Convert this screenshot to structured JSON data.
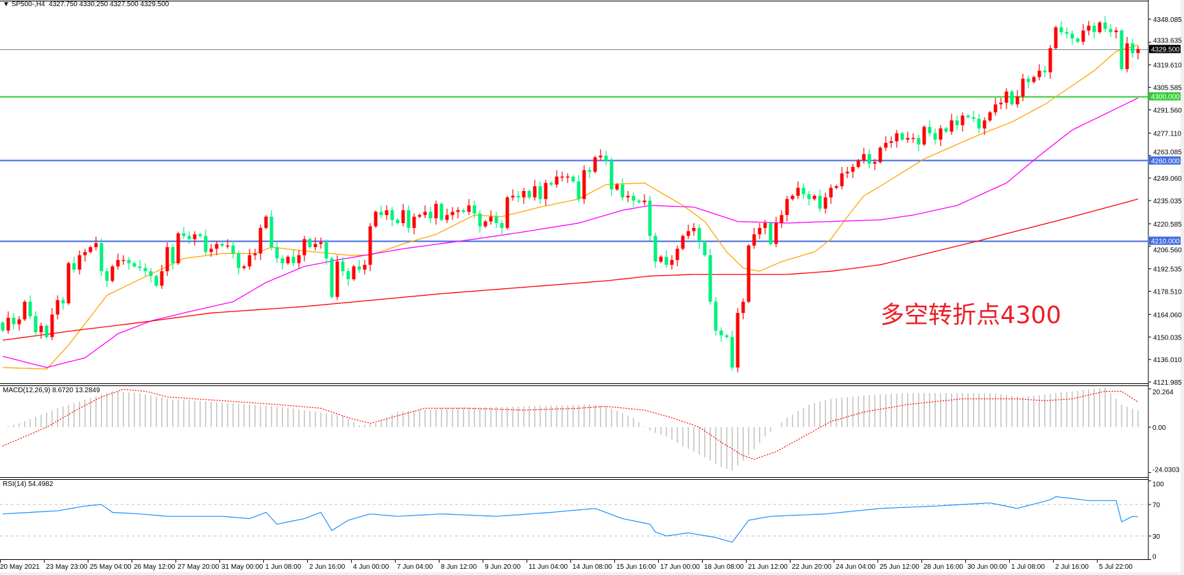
{
  "header": {
    "arrow": "▼",
    "symbol": "SP500-,H4",
    "ohlc": "4327.750 4330.250 4327.500 4329.500"
  },
  "annotation": "多空转折点4300",
  "colors": {
    "up_candle": "#ff0000",
    "down_candle": "#00f07c",
    "ma_fast": "#ffa500",
    "ma_mid": "#ff00ff",
    "ma_slow": "#ff0000",
    "level_4300": "#32cd32",
    "level_blue": "#4169e1",
    "current_price": "#778899",
    "macd_hist": "#c0c0c0",
    "macd_signal": "#ff0000",
    "rsi": "#1e90ff"
  },
  "chart_data": {
    "type": "candlestick",
    "note": "red candles rise, green candles fall",
    "price_axis": {
      "ticks": [
        "4348.085",
        "4333.635",
        "4319.610",
        "4305.585",
        "4291.560",
        "4277.110",
        "4263.085",
        "4249.060",
        "4235.035",
        "4220.585",
        "4206.560",
        "4192.535",
        "4178.510",
        "4164.060",
        "4150.035",
        "4136.010",
        "4121.985"
      ],
      "range": [
        4121.985,
        4348.085
      ]
    },
    "levels": [
      {
        "label": "4329.500",
        "value": 4329.5,
        "kind": "current"
      },
      {
        "label": "4300.000",
        "value": 4300,
        "kind": "green"
      },
      {
        "label": "4260.000",
        "value": 4260,
        "kind": "blue"
      },
      {
        "label": "4210.000",
        "value": 4210,
        "kind": "blue"
      }
    ],
    "time_labels": [
      "20 May 2021",
      "23 May 23:00",
      "25 May 04:00",
      "26 May 12:00",
      "27 May 20:00",
      "31 May 00:00",
      "1 Jun 08:00",
      "2 Jun 16:00",
      "4 Jun 00:00",
      "7 Jun 04:00",
      "8 Jun 12:00",
      "9 Jun 20:00",
      "11 Jun 04:00",
      "14 Jun 08:00",
      "15 Jun 16:00",
      "17 Jun 00:00",
      "18 Jun 08:00",
      "21 Jun 12:00",
      "22 Jun 20:00",
      "24 Jun 04:00",
      "25 Jun 12:00",
      "28 Jun 16:00",
      "30 Jun 00:00",
      "1 Jul 08:00",
      "2 Jul 16:00",
      "5 Jul 22:00"
    ],
    "first_open": 4159,
    "close": [
      4154,
      4162,
      4158,
      4161,
      4172,
      4163,
      4153,
      4157,
      4150,
      4164,
      4173,
      4171,
      4196,
      4192,
      4201,
      4203,
      4206,
      4208.5,
      4191,
      4185,
      4194,
      4198,
      4198,
      4196,
      4194,
      4193,
      4191,
      4188,
      4182,
      4191,
      4206,
      4196,
      4214.6,
      4213,
      4211,
      4214,
      4213,
      4203,
      4205,
      4208,
      4207,
      4207,
      4202,
      4193,
      4194,
      4201,
      4202,
      4218,
      4225,
      4206,
      4199,
      4196,
      4200,
      4196,
      4201,
      4211,
      4206,
      4208,
      4209,
      4199,
      4175,
      4197,
      4191,
      4186,
      4194,
      4192,
      4195,
      4219,
      4228,
      4226,
      4229,
      4223,
      4221,
      4229,
      4218,
      4225,
      4226,
      4228,
      4224,
      4233,
      4223,
      4226,
      4228,
      4229,
      4228,
      4232,
      4227,
      4219,
      4222,
      4225,
      4221,
      4218,
      4237,
      4238,
      4237,
      4241,
      4237,
      4244,
      4236,
      4246,
      4245,
      4250,
      4250,
      4250,
      4247,
      4236,
      4254,
      4253,
      4262,
      4263,
      4260,
      4242,
      4245,
      4237,
      4238,
      4235,
      4234,
      4235,
      4213,
      4197,
      4200,
      4195,
      4198,
      4205,
      4213,
      4216,
      4218,
      4209,
      4201,
      4172,
      4154,
      4151,
      4150,
      4131,
      4165,
      4172,
      4207,
      4214,
      4218,
      4221,
      4208,
      4221,
      4226,
      4236,
      4238,
      4243,
      4239,
      4236,
      4238,
      4230,
      4237,
      4243,
      4244,
      4252,
      4253,
      4256,
      4260,
      4264,
      4258,
      4259,
      4268,
      4271,
      4272,
      4277,
      4273,
      4274,
      4274,
      4270,
      4281,
      4277,
      4273,
      4280,
      4278,
      4285,
      4282,
      4288,
      4287,
      4286,
      4280,
      4285,
      4290,
      4295,
      4296,
      4303,
      4295,
      4300,
      4311,
      4309,
      4312,
      4316,
      4315,
      4330,
      4343,
      4340,
      4339,
      4336,
      4334,
      4341,
      4344,
      4340,
      4346,
      4342,
      4340,
      4341,
      4317,
      4333,
      4327,
      4329.5
    ],
    "moving_averages": [
      {
        "color": "ma_fast",
        "bars": [
          0,
          8,
          12,
          19,
          25,
          30,
          33,
          40,
          46,
          49,
          54,
          63,
          67,
          73,
          79,
          86,
          91,
          98,
          105,
          110,
          117,
          124,
          128,
          132,
          135,
          138,
          142,
          148,
          151,
          154,
          157,
          160,
          168,
          178,
          184,
          190,
          193,
          199,
          203,
          207
        ],
        "values": [
          4131,
          4130,
          4145,
          4176,
          4186,
          4194,
          4199,
          4202,
          4202,
          4206,
          4204,
          4201,
          4201,
          4208,
          4214,
          4226,
          4225,
          4231,
          4236,
          4245,
          4246,
          4232,
          4222,
          4203,
          4193,
          4191,
          4197,
          4203,
          4211,
          4225,
          4238,
          4244,
          4261,
          4276,
          4284,
          4295,
          4302,
          4316,
          4328,
          4332
        ]
      },
      {
        "color": "ma_mid",
        "bars": [
          0,
          8,
          15,
          21,
          27,
          33,
          42,
          48,
          55,
          61,
          73,
          86,
          94,
          105,
          113,
          118,
          126,
          134,
          143,
          151,
          160,
          166,
          174,
          183,
          189,
          195,
          207
        ],
        "values": [
          4138,
          4131,
          4137,
          4152,
          4160,
          4165,
          4172,
          4184,
          4194,
          4198,
          4205,
          4211,
          4215,
          4221,
          4229,
          4232,
          4231,
          4222,
          4221,
          4222,
          4223,
          4226,
          4232,
          4246,
          4263,
          4279,
          4299
        ]
      },
      {
        "color": "ma_slow",
        "bars": [
          0,
          13,
          25,
          38,
          55,
          80,
          110,
          118,
          126,
          143,
          151,
          160,
          178,
          194,
          207
        ],
        "values": [
          4148,
          4154,
          4159,
          4165,
          4169,
          4177,
          4185,
          4188,
          4189,
          4189,
          4191,
          4195,
          4210,
          4224,
          4236
        ]
      }
    ],
    "macd": {
      "label": "MACD(12,26,9) 8.6720 13.2849",
      "axis_labels": [
        "20.264",
        "0.00",
        "-24.0303"
      ],
      "range": [
        -24.0303,
        20.264
      ],
      "main_bars": [
        0,
        3,
        10,
        20,
        25,
        30,
        40,
        50,
        55,
        62,
        65,
        68,
        72,
        80,
        95,
        107,
        110,
        115,
        118,
        121,
        124,
        128,
        131,
        133,
        136,
        139,
        143,
        147,
        151,
        158,
        165,
        180,
        186,
        192,
        198,
        201,
        204,
        207
      ],
      "main_values": [
        0,
        2,
        10,
        19,
        18,
        15,
        13,
        11,
        9,
        6,
        1,
        2,
        8,
        10,
        11,
        12,
        11,
        5,
        -2,
        -5,
        -10,
        -16,
        -21,
        -23,
        -15,
        -5,
        5,
        12,
        15,
        17,
        18,
        18,
        16,
        18,
        20,
        21,
        12,
        8.672
      ],
      "signal_bars": [
        0,
        8,
        14,
        18,
        22,
        26,
        30,
        40,
        50,
        58,
        63,
        67,
        72,
        77,
        85,
        95,
        105,
        110,
        117,
        122,
        127,
        131,
        135,
        137,
        141,
        146,
        151,
        157,
        165,
        175,
        185,
        190,
        195,
        201,
        204,
        207
      ],
      "signal_values": [
        -10,
        0,
        10,
        16,
        20,
        19,
        16,
        14,
        12,
        10,
        5,
        2,
        6,
        10,
        10,
        9,
        10,
        11,
        9,
        5,
        0,
        -8,
        -15,
        -17,
        -13,
        -5,
        3,
        8,
        12,
        15,
        15,
        14,
        15,
        19,
        19,
        13.2849
      ]
    },
    "rsi": {
      "label": "RSI(14) 54.4982",
      "axis_labels": [
        "100",
        "70",
        "30",
        "0"
      ],
      "levels": [
        70,
        30
      ],
      "bars": [
        0,
        10,
        15,
        18,
        20,
        25,
        30,
        40,
        45,
        48,
        50,
        55,
        58,
        60,
        63,
        67,
        72,
        80,
        90,
        100,
        108,
        113,
        118,
        119,
        121,
        125,
        130,
        133,
        136,
        140,
        150,
        160,
        170,
        180,
        185,
        191,
        192,
        198,
        203,
        204,
        206,
        207
      ],
      "values": [
        58,
        62,
        68,
        70,
        60,
        58,
        55,
        55,
        52,
        60,
        45,
        52,
        60,
        37,
        50,
        58,
        55,
        58,
        55,
        60,
        65,
        52,
        45,
        35,
        30,
        34,
        28,
        22,
        50,
        55,
        58,
        65,
        68,
        72,
        65,
        76,
        80,
        75,
        75,
        48,
        55,
        54.4982
      ]
    }
  }
}
